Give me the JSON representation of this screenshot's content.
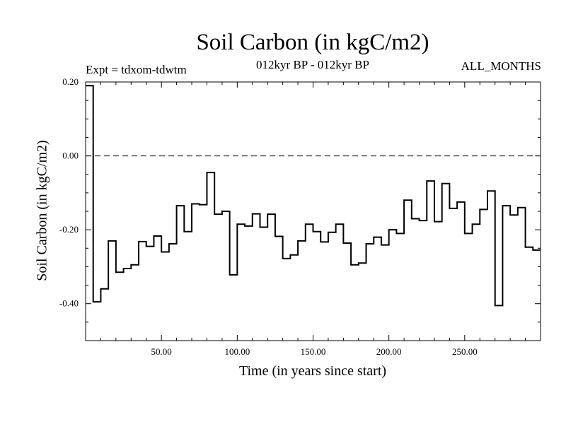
{
  "chart_data": {
    "type": "line",
    "title": "Soil Carbon (in kgC/m2)",
    "subtitle": "012kyr BP - 012kyr BP",
    "left_note": "Expt = tdxom-tdwtm",
    "right_note": "ALL_MONTHS",
    "xlabel": "Time (in years since start)",
    "ylabel": "Soil Carbon (in kgC/m2)",
    "xlim": [
      0,
      300
    ],
    "ylim": [
      -0.5,
      0.2
    ],
    "x_ticks": [
      50,
      100,
      150,
      200,
      250
    ],
    "x_tick_labels": [
      "50.00",
      "100.00",
      "150.00",
      "200.00",
      "250.00"
    ],
    "y_ticks": [
      0.2,
      0.0,
      -0.2,
      -0.4
    ],
    "y_tick_labels": [
      "0.20",
      "0.00",
      "-0.20",
      "-0.40"
    ],
    "reference_line": {
      "y": 0.0,
      "style": "dashed"
    },
    "x": [
      0,
      5,
      10,
      15,
      20,
      25,
      30,
      35,
      40,
      45,
      50,
      55,
      60,
      65,
      70,
      75,
      80,
      85,
      90,
      95,
      100,
      105,
      110,
      115,
      120,
      125,
      130,
      135,
      140,
      145,
      150,
      155,
      160,
      165,
      170,
      175,
      180,
      185,
      190,
      195,
      200,
      205,
      210,
      215,
      220,
      225,
      230,
      235,
      240,
      245,
      250,
      255,
      260,
      265,
      270,
      275,
      280,
      285,
      290,
      295
    ],
    "values": [
      0.19,
      -0.395,
      -0.36,
      -0.23,
      -0.315,
      -0.305,
      -0.295,
      -0.232,
      -0.245,
      -0.217,
      -0.26,
      -0.238,
      -0.135,
      -0.205,
      -0.13,
      -0.132,
      -0.045,
      -0.158,
      -0.15,
      -0.322,
      -0.185,
      -0.19,
      -0.157,
      -0.193,
      -0.158,
      -0.218,
      -0.278,
      -0.268,
      -0.23,
      -0.185,
      -0.205,
      -0.233,
      -0.207,
      -0.185,
      -0.236,
      -0.295,
      -0.29,
      -0.238,
      -0.22,
      -0.241,
      -0.2,
      -0.21,
      -0.12,
      -0.17,
      -0.175,
      -0.068,
      -0.178,
      -0.075,
      -0.142,
      -0.125,
      -0.21,
      -0.185,
      -0.145,
      -0.095,
      -0.405,
      -0.135,
      -0.16,
      -0.14,
      -0.247,
      -0.255
    ],
    "line_color": "#000000",
    "grid": false,
    "legend": "none"
  }
}
